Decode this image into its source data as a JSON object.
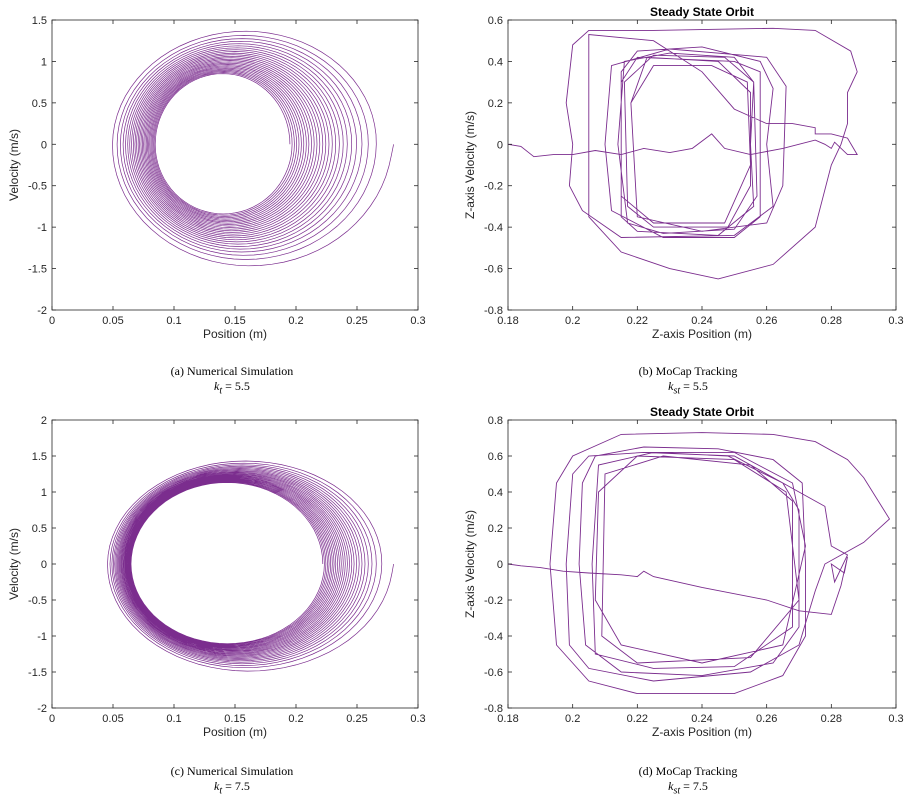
{
  "chart_data": [
    {
      "type": "line",
      "panel": "a",
      "title": "",
      "xlabel": "Position (m)",
      "ylabel": "Velocity (m/s)",
      "xlim": [
        0,
        0.3
      ],
      "ylim": [
        -2,
        1.5
      ],
      "xticks": [
        0,
        0.05,
        0.1,
        0.15,
        0.2,
        0.25,
        0.3
      ],
      "yticks": [
        -2,
        -1.5,
        -1,
        -0.5,
        0,
        0.5,
        1,
        1.5
      ],
      "xtick_labels": [
        "0",
        "0.05",
        "0.1",
        "0.15",
        "0.2",
        "0.25",
        "0.3"
      ],
      "ytick_labels": [
        "-2",
        "-1.5",
        "-1",
        "-0.5",
        "0",
        "0.5",
        "1",
        "1.5"
      ],
      "color": "#7b2d8e",
      "spiral": {
        "start_x": 0.28,
        "start_y": 0.0,
        "outer": {
          "xmin": 0.045,
          "xmax": 0.28,
          "ymax": 1.45,
          "ymin": -1.52
        },
        "limit": {
          "xmin": 0.085,
          "xmax": 0.195,
          "ymax": 0.85,
          "ymin": -0.83
        },
        "turns": 26
      },
      "caption": {
        "label": "(a) Numerical Simulation",
        "k_sym": "k",
        "k_sub": "t",
        "k_val": " = 5.5"
      }
    },
    {
      "type": "line",
      "panel": "b",
      "title": "Steady State Orbit",
      "xlabel": "Z-axis Position (m)",
      "ylabel": "Z-axis Velocity (m/s)",
      "xlim": [
        0.18,
        0.3
      ],
      "ylim": [
        -0.8,
        0.6
      ],
      "xticks": [
        0.18,
        0.2,
        0.22,
        0.24,
        0.26,
        0.28,
        0.3
      ],
      "yticks": [
        -0.8,
        -0.6,
        -0.4,
        -0.2,
        0,
        0.2,
        0.4,
        0.6
      ],
      "xtick_labels": [
        "0.18",
        "0.2",
        "0.22",
        "0.24",
        "0.26",
        "0.28",
        "0.3"
      ],
      "ytick_labels": [
        "-0.8",
        "-0.6",
        "-0.4",
        "-0.2",
        "0",
        "0.2",
        "0.4",
        "0.6"
      ],
      "color": "#7b2d8e",
      "trace": [
        [
          0.18,
          0.0
        ],
        [
          0.184,
          -0.01
        ],
        [
          0.188,
          -0.06
        ],
        [
          0.194,
          -0.05
        ],
        [
          0.2,
          -0.05
        ],
        [
          0.207,
          -0.03
        ],
        [
          0.215,
          -0.05
        ],
        [
          0.222,
          -0.02
        ],
        [
          0.23,
          -0.04
        ],
        [
          0.237,
          -0.02
        ],
        [
          0.243,
          0.05
        ],
        [
          0.247,
          -0.02
        ],
        [
          0.255,
          -0.05
        ],
        [
          0.265,
          -0.02
        ],
        [
          0.275,
          0.02
        ],
        [
          0.278,
          0.0
        ],
        [
          0.28,
          -0.02
        ],
        [
          0.281,
          0.01
        ],
        [
          0.285,
          -0.05
        ],
        [
          0.288,
          -0.05
        ],
        [
          0.285,
          0.03
        ],
        [
          0.28,
          0.05
        ],
        [
          0.275,
          0.05
        ],
        [
          0.275,
          0.08
        ],
        [
          0.268,
          0.1
        ],
        [
          0.26,
          0.1
        ],
        [
          0.25,
          0.17
        ],
        [
          0.24,
          0.35
        ],
        [
          0.225,
          0.5
        ],
        [
          0.205,
          0.53
        ],
        [
          0.205,
          0.0
        ],
        [
          0.205,
          -0.35
        ],
        [
          0.215,
          -0.52
        ],
        [
          0.23,
          -0.6
        ],
        [
          0.245,
          -0.65
        ],
        [
          0.262,
          -0.58
        ],
        [
          0.275,
          -0.4
        ],
        [
          0.28,
          -0.1
        ],
        [
          0.283,
          0.0
        ],
        [
          0.285,
          0.1
        ],
        [
          0.285,
          0.25
        ],
        [
          0.288,
          0.35
        ],
        [
          0.286,
          0.45
        ],
        [
          0.275,
          0.55
        ],
        [
          0.262,
          0.56
        ],
        [
          0.225,
          0.55
        ],
        [
          0.205,
          0.55
        ],
        [
          0.2,
          0.48
        ],
        [
          0.198,
          0.2
        ],
        [
          0.2,
          0.0
        ],
        [
          0.199,
          -0.2
        ],
        [
          0.203,
          -0.32
        ],
        [
          0.215,
          -0.45
        ],
        [
          0.25,
          -0.44
        ],
        [
          0.262,
          -0.3
        ],
        [
          0.26,
          0.0
        ],
        [
          0.262,
          0.27
        ],
        [
          0.258,
          0.4
        ],
        [
          0.24,
          0.47
        ],
        [
          0.22,
          0.45
        ],
        [
          0.215,
          0.35
        ],
        [
          0.215,
          0.0
        ],
        [
          0.215,
          -0.35
        ],
        [
          0.22,
          -0.42
        ],
        [
          0.245,
          -0.44
        ],
        [
          0.256,
          -0.3
        ],
        [
          0.255,
          0.0
        ],
        [
          0.256,
          0.3
        ],
        [
          0.25,
          0.42
        ],
        [
          0.23,
          0.44
        ],
        [
          0.216,
          0.4
        ],
        [
          0.214,
          0.0
        ],
        [
          0.217,
          -0.38
        ],
        [
          0.228,
          -0.43
        ],
        [
          0.25,
          -0.41
        ],
        [
          0.257,
          -0.25
        ],
        [
          0.256,
          0.3
        ],
        [
          0.247,
          0.42
        ],
        [
          0.225,
          0.43
        ],
        [
          0.216,
          0.3
        ],
        [
          0.217,
          -0.3
        ],
        [
          0.225,
          -0.4
        ],
        [
          0.248,
          -0.4
        ],
        [
          0.255,
          -0.2
        ],
        [
          0.255,
          0.25
        ],
        [
          0.245,
          0.4
        ],
        [
          0.223,
          0.42
        ],
        [
          0.218,
          0.2
        ],
        [
          0.22,
          -0.35
        ],
        [
          0.24,
          -0.42
        ],
        [
          0.26,
          -0.38
        ],
        [
          0.265,
          -0.2
        ],
        [
          0.266,
          0.28
        ],
        [
          0.26,
          0.42
        ],
        [
          0.23,
          0.46
        ],
        [
          0.212,
          0.38
        ],
        [
          0.21,
          0.0
        ],
        [
          0.212,
          -0.32
        ],
        [
          0.228,
          -0.45
        ],
        [
          0.25,
          -0.45
        ],
        [
          0.258,
          -0.35
        ],
        [
          0.258,
          0.35
        ],
        [
          0.25,
          0.4
        ],
        [
          0.22,
          0.42
        ],
        [
          0.215,
          0.3
        ],
        [
          0.215,
          -0.25
        ],
        [
          0.225,
          -0.38
        ],
        [
          0.247,
          -0.38
        ],
        [
          0.255,
          -0.1
        ],
        [
          0.254,
          0.3
        ],
        [
          0.243,
          0.38
        ],
        [
          0.225,
          0.38
        ],
        [
          0.218,
          0.2
        ]
      ],
      "caption": {
        "label": "(b) MoCap Tracking",
        "k_sym": "k",
        "k_sub": "st",
        "k_val": " = 5.5"
      }
    },
    {
      "type": "line",
      "panel": "c",
      "title": "",
      "xlabel": "Position (m)",
      "ylabel": "Velocity (m/s)",
      "xlim": [
        0,
        0.3
      ],
      "ylim": [
        -2,
        2
      ],
      "xticks": [
        0,
        0.05,
        0.1,
        0.15,
        0.2,
        0.25,
        0.3
      ],
      "yticks": [
        -2,
        -1.5,
        -1,
        -0.5,
        0,
        0.5,
        1,
        1.5,
        2
      ],
      "xtick_labels": [
        "0",
        "0.05",
        "0.1",
        "0.15",
        "0.2",
        "0.25",
        "0.3"
      ],
      "ytick_labels": [
        "-2",
        "-1.5",
        "-1",
        "-0.5",
        "0",
        "0.5",
        "1",
        "1.5",
        "2"
      ],
      "color": "#7b2d8e",
      "spiral": {
        "start_x": 0.28,
        "start_y": 0.0,
        "outer": {
          "xmin": 0.043,
          "xmax": 0.28,
          "ymax": 1.48,
          "ymin": -1.52
        },
        "limit": {
          "xmin": 0.065,
          "xmax": 0.222,
          "ymax": 1.13,
          "ymin": -1.1
        },
        "turns": 26
      },
      "caption": {
        "label": "(c) Numerical Simulation",
        "k_sym": "k",
        "k_sub": "t",
        "k_val": " = 7.5"
      }
    },
    {
      "type": "line",
      "panel": "d",
      "title": "Steady State Orbit",
      "xlabel": "Z-axis Position (m)",
      "ylabel": "Z-axis Velocity (m/s)",
      "xlim": [
        0.18,
        0.3
      ],
      "ylim": [
        -0.8,
        0.8
      ],
      "xticks": [
        0.18,
        0.2,
        0.22,
        0.24,
        0.26,
        0.28,
        0.3
      ],
      "yticks": [
        -0.8,
        -0.6,
        -0.4,
        -0.2,
        0,
        0.2,
        0.4,
        0.6,
        0.8
      ],
      "xtick_labels": [
        "0.18",
        "0.2",
        "0.22",
        "0.24",
        "0.26",
        "0.28",
        "0.3"
      ],
      "ytick_labels": [
        "-0.8",
        "-0.6",
        "-0.4",
        "-0.2",
        "0",
        "0.2",
        "0.4",
        "0.6",
        "0.8"
      ],
      "color": "#7b2d8e",
      "trace": [
        [
          0.18,
          0.0
        ],
        [
          0.184,
          -0.01
        ],
        [
          0.19,
          -0.02
        ],
        [
          0.197,
          -0.04
        ],
        [
          0.205,
          -0.05
        ],
        [
          0.215,
          -0.06
        ],
        [
          0.22,
          -0.07
        ],
        [
          0.222,
          -0.04
        ],
        [
          0.225,
          -0.07
        ],
        [
          0.24,
          -0.13
        ],
        [
          0.26,
          -0.2
        ],
        [
          0.27,
          -0.26
        ],
        [
          0.28,
          -0.28
        ],
        [
          0.283,
          -0.12
        ],
        [
          0.285,
          0.04
        ],
        [
          0.284,
          -0.05
        ],
        [
          0.28,
          0.0
        ],
        [
          0.281,
          -0.1
        ],
        [
          0.285,
          0.05
        ],
        [
          0.28,
          0.1
        ],
        [
          0.278,
          0.32
        ],
        [
          0.27,
          0.4
        ],
        [
          0.26,
          0.5
        ],
        [
          0.25,
          0.6
        ],
        [
          0.222,
          0.62
        ],
        [
          0.205,
          0.6
        ],
        [
          0.2,
          0.5
        ],
        [
          0.198,
          0.0
        ],
        [
          0.199,
          -0.45
        ],
        [
          0.205,
          -0.58
        ],
        [
          0.225,
          -0.65
        ],
        [
          0.255,
          -0.6
        ],
        [
          0.27,
          -0.45
        ],
        [
          0.275,
          -0.15
        ],
        [
          0.278,
          0.0
        ],
        [
          0.29,
          0.12
        ],
        [
          0.298,
          0.25
        ],
        [
          0.29,
          0.48
        ],
        [
          0.285,
          0.58
        ],
        [
          0.275,
          0.68
        ],
        [
          0.262,
          0.72
        ],
        [
          0.24,
          0.73
        ],
        [
          0.215,
          0.72
        ],
        [
          0.2,
          0.6
        ],
        [
          0.195,
          0.45
        ],
        [
          0.193,
          0.0
        ],
        [
          0.195,
          -0.45
        ],
        [
          0.205,
          -0.65
        ],
        [
          0.22,
          -0.72
        ],
        [
          0.25,
          -0.72
        ],
        [
          0.265,
          -0.62
        ],
        [
          0.272,
          -0.4
        ],
        [
          0.272,
          0.0
        ],
        [
          0.271,
          0.45
        ],
        [
          0.262,
          0.58
        ],
        [
          0.245,
          0.64
        ],
        [
          0.222,
          0.65
        ],
        [
          0.207,
          0.6
        ],
        [
          0.203,
          0.45
        ],
        [
          0.202,
          0.0
        ],
        [
          0.204,
          -0.45
        ],
        [
          0.215,
          -0.6
        ],
        [
          0.24,
          -0.62
        ],
        [
          0.262,
          -0.55
        ],
        [
          0.27,
          -0.35
        ],
        [
          0.27,
          0.3
        ],
        [
          0.265,
          0.45
        ],
        [
          0.248,
          0.6
        ],
        [
          0.225,
          0.62
        ],
        [
          0.208,
          0.55
        ],
        [
          0.206,
          0.0
        ],
        [
          0.207,
          -0.5
        ],
        [
          0.225,
          -0.58
        ],
        [
          0.25,
          -0.57
        ],
        [
          0.268,
          -0.35
        ],
        [
          0.268,
          0.35
        ],
        [
          0.255,
          0.55
        ],
        [
          0.228,
          0.6
        ],
        [
          0.21,
          0.5
        ],
        [
          0.209,
          -0.4
        ],
        [
          0.22,
          -0.55
        ],
        [
          0.255,
          -0.52
        ],
        [
          0.27,
          -0.2
        ],
        [
          0.266,
          0.4
        ],
        [
          0.25,
          0.58
        ],
        [
          0.22,
          0.6
        ],
        [
          0.208,
          0.4
        ],
        [
          0.207,
          -0.2
        ],
        [
          0.215,
          -0.45
        ],
        [
          0.24,
          -0.55
        ],
        [
          0.265,
          -0.45
        ],
        [
          0.272,
          0.1
        ],
        [
          0.268,
          0.45
        ],
        [
          0.25,
          0.62
        ],
        [
          0.222,
          0.62
        ]
      ],
      "caption": {
        "label": "(d) MoCap Tracking",
        "k_sym": "k",
        "k_sub": "st",
        "k_val": " = 7.5"
      }
    }
  ]
}
